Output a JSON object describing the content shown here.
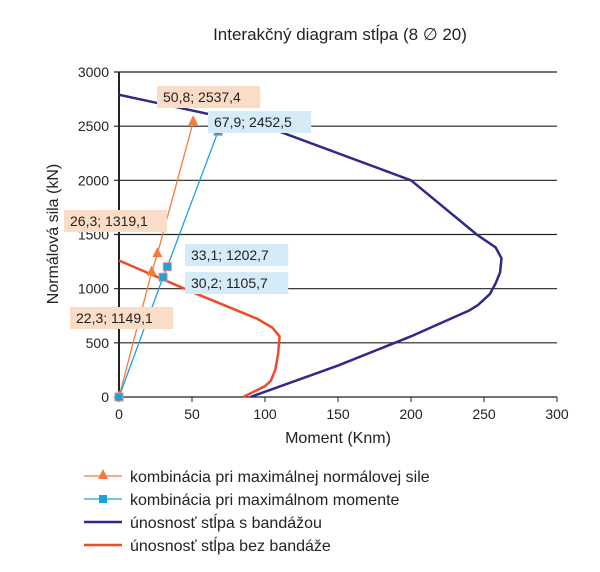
{
  "chart_data": {
    "type": "line",
    "title": "Interakčný diagram stĺpa (8 ∅ 20)",
    "xlabel": "Moment (Knm)",
    "ylabel": "Normálová sila (kN)",
    "xlim": [
      0,
      300
    ],
    "ylim": [
      0,
      3000
    ],
    "xticks": [
      0,
      50,
      100,
      150,
      200,
      250,
      300
    ],
    "yticks": [
      0,
      500,
      1000,
      1500,
      2000,
      2500,
      3000
    ],
    "grid": "horizontal",
    "legend_position": "bottom",
    "series": [
      {
        "name": "kombinácia pri maximálnej normálovej sile",
        "color": "#f47b3b",
        "marker": "triangle",
        "x": [
          0,
          22.3,
          26.3,
          50.8
        ],
        "y": [
          0,
          1149.1,
          1319.1,
          2537.4
        ],
        "labels": [
          "",
          "22,3; 1149,1",
          "26,3; 1319,1",
          "50,8; 2537,4"
        ],
        "label_bg": "#fbdcc6"
      },
      {
        "name": "kombinácia pri maximálnom momente",
        "color": "#1ea0dc",
        "marker": "square",
        "x": [
          0,
          30.2,
          33.1,
          67.9
        ],
        "y": [
          0,
          1105.7,
          1202.7,
          2452.5
        ],
        "labels": [
          "",
          "30,2; 1105,7",
          "33,1; 1202,7",
          "67,9; 2452,5"
        ],
        "label_bg": "#d6ebf8"
      },
      {
        "name": "únosnosť stĺpa s bandážou",
        "color": "#2e2a8a",
        "marker": "none",
        "x": [
          0,
          100,
          200,
          245,
          258,
          262,
          261,
          258,
          254,
          246,
          240,
          200,
          150,
          90
        ],
        "y": [
          2790,
          2500,
          2000,
          1500,
          1380,
          1280,
          1150,
          1050,
          950,
          850,
          800,
          560,
          290,
          0
        ]
      },
      {
        "name": "únosnosť stĺpa bez bandáže",
        "color": "#ee4b2b",
        "marker": "none",
        "x": [
          0,
          50,
          95,
          105,
          110,
          109,
          107,
          104,
          100,
          85
        ],
        "y": [
          1260,
          970,
          720,
          640,
          560,
          400,
          250,
          150,
          100,
          0
        ]
      }
    ]
  }
}
